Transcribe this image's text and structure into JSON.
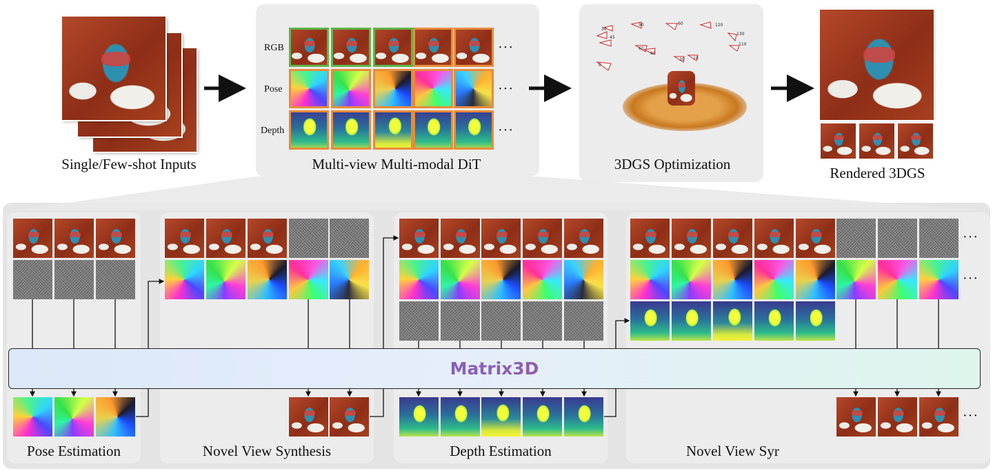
{
  "top": {
    "captions": {
      "inputs": "Single/Few-shot Inputs",
      "dit": "Multi-view Multi-modal DiT",
      "gs_opt": "3DGS Optimization",
      "rendered": "Rendered 3DGS"
    },
    "row_labels": {
      "rgb": "RGB",
      "pose": "Pose",
      "depth": "Depth"
    },
    "ellipsis": "···"
  },
  "bar": {
    "label": "Matrix3D"
  },
  "tasks": {
    "pose_estimation": "Pose Estimation",
    "nvs_1": "Novel View Synthesis",
    "depth_estimation": "Depth Estimation",
    "nvs_2": "Novel View Syr"
  },
  "camera_labels": [
    "30",
    "90",
    "60",
    "120",
    "130",
    "110",
    "60",
    "80",
    "30",
    "10",
    "45",
    "0"
  ],
  "colors": {
    "green_border": "#5fb54a",
    "orange_border": "#e88b3a",
    "panel_bg": "#ececec",
    "arrow": "#111111"
  }
}
